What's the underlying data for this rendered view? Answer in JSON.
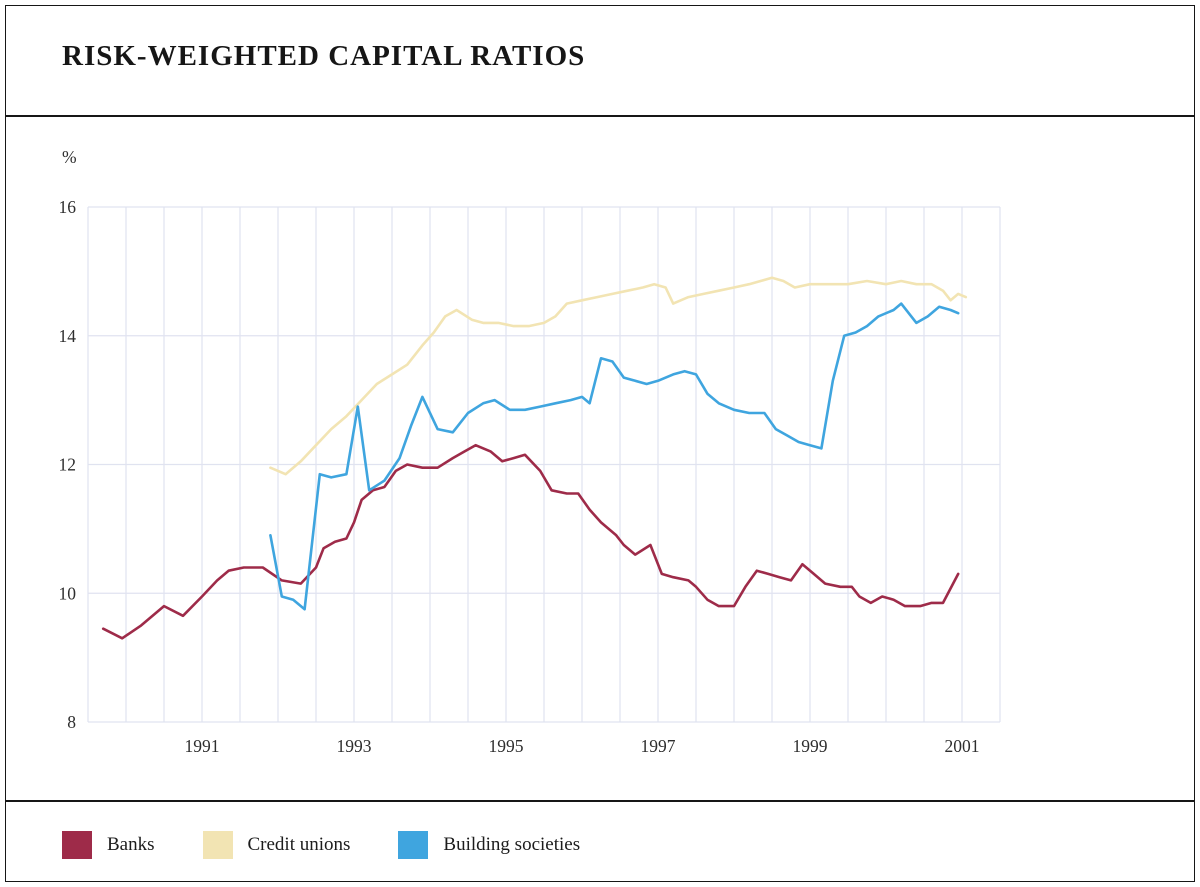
{
  "page": {
    "title": "RISK-WEIGHTED CAPITAL RATIOS"
  },
  "legend": [
    {
      "label": "Banks",
      "color": "#9e2b49"
    },
    {
      "label": "Credit unions",
      "color": "#f2e4b3"
    },
    {
      "label": "Building societies",
      "color": "#3fa5df"
    }
  ],
  "chart_data": {
    "type": "line",
    "title": "RISK-WEIGHTED CAPITAL RATIOS",
    "xlabel": "",
    "ylabel": "%",
    "xlim": [
      1989.5,
      2001.5
    ],
    "ylim": [
      8,
      16
    ],
    "x_ticks": [
      1991,
      1993,
      1995,
      1997,
      1999,
      2001
    ],
    "y_ticks": [
      16,
      14,
      12,
      10,
      8
    ],
    "grid": {
      "on": true,
      "x_step": 0.5,
      "color": "#e0e3f0"
    },
    "legend_position": "bottom",
    "series": [
      {
        "name": "Banks",
        "color": "#9e2b49",
        "points": [
          [
            1989.7,
            9.45
          ],
          [
            1989.95,
            9.3
          ],
          [
            1990.2,
            9.5
          ],
          [
            1990.5,
            9.8
          ],
          [
            1990.75,
            9.65
          ],
          [
            1991.0,
            9.95
          ],
          [
            1991.2,
            10.2
          ],
          [
            1991.35,
            10.35
          ],
          [
            1991.55,
            10.4
          ],
          [
            1991.8,
            10.4
          ],
          [
            1992.05,
            10.2
          ],
          [
            1992.3,
            10.15
          ],
          [
            1992.5,
            10.4
          ],
          [
            1992.6,
            10.7
          ],
          [
            1992.75,
            10.8
          ],
          [
            1992.9,
            10.85
          ],
          [
            1993.0,
            11.1
          ],
          [
            1993.1,
            11.45
          ],
          [
            1993.25,
            11.6
          ],
          [
            1993.4,
            11.65
          ],
          [
            1993.55,
            11.9
          ],
          [
            1993.7,
            12.0
          ],
          [
            1993.9,
            11.95
          ],
          [
            1994.1,
            11.95
          ],
          [
            1994.3,
            12.1
          ],
          [
            1994.45,
            12.2
          ],
          [
            1994.6,
            12.3
          ],
          [
            1994.8,
            12.2
          ],
          [
            1994.95,
            12.05
          ],
          [
            1995.1,
            12.1
          ],
          [
            1995.25,
            12.15
          ],
          [
            1995.45,
            11.9
          ],
          [
            1995.6,
            11.6
          ],
          [
            1995.8,
            11.55
          ],
          [
            1995.95,
            11.55
          ],
          [
            1996.1,
            11.3
          ],
          [
            1996.25,
            11.1
          ],
          [
            1996.45,
            10.9
          ],
          [
            1996.55,
            10.75
          ],
          [
            1996.7,
            10.6
          ],
          [
            1996.9,
            10.75
          ],
          [
            1997.05,
            10.3
          ],
          [
            1997.2,
            10.25
          ],
          [
            1997.4,
            10.2
          ],
          [
            1997.5,
            10.1
          ],
          [
            1997.65,
            9.9
          ],
          [
            1997.8,
            9.8
          ],
          [
            1998.0,
            9.8
          ],
          [
            1998.15,
            10.1
          ],
          [
            1998.3,
            10.35
          ],
          [
            1998.45,
            10.3
          ],
          [
            1998.6,
            10.25
          ],
          [
            1998.75,
            10.2
          ],
          [
            1998.9,
            10.45
          ],
          [
            1999.05,
            10.3
          ],
          [
            1999.2,
            10.15
          ],
          [
            1999.4,
            10.1
          ],
          [
            1999.55,
            10.1
          ],
          [
            1999.65,
            9.95
          ],
          [
            1999.8,
            9.85
          ],
          [
            1999.95,
            9.95
          ],
          [
            2000.1,
            9.9
          ],
          [
            2000.25,
            9.8
          ],
          [
            2000.45,
            9.8
          ],
          [
            2000.6,
            9.85
          ],
          [
            2000.75,
            9.85
          ],
          [
            2000.95,
            10.3
          ]
        ]
      },
      {
        "name": "Credit unions",
        "color": "#f2e4b3",
        "points": [
          [
            1991.9,
            11.95
          ],
          [
            1992.1,
            11.85
          ],
          [
            1992.3,
            12.05
          ],
          [
            1992.5,
            12.3
          ],
          [
            1992.7,
            12.55
          ],
          [
            1992.9,
            12.75
          ],
          [
            1993.1,
            13.0
          ],
          [
            1993.3,
            13.25
          ],
          [
            1993.5,
            13.4
          ],
          [
            1993.7,
            13.55
          ],
          [
            1993.9,
            13.85
          ],
          [
            1994.05,
            14.05
          ],
          [
            1994.2,
            14.3
          ],
          [
            1994.35,
            14.4
          ],
          [
            1994.55,
            14.25
          ],
          [
            1994.7,
            14.2
          ],
          [
            1994.9,
            14.2
          ],
          [
            1995.1,
            14.15
          ],
          [
            1995.3,
            14.15
          ],
          [
            1995.5,
            14.2
          ],
          [
            1995.65,
            14.3
          ],
          [
            1995.8,
            14.5
          ],
          [
            1996.0,
            14.55
          ],
          [
            1996.2,
            14.6
          ],
          [
            1996.4,
            14.65
          ],
          [
            1996.6,
            14.7
          ],
          [
            1996.8,
            14.75
          ],
          [
            1996.95,
            14.8
          ],
          [
            1997.1,
            14.75
          ],
          [
            1997.2,
            14.5
          ],
          [
            1997.4,
            14.6
          ],
          [
            1997.6,
            14.65
          ],
          [
            1997.8,
            14.7
          ],
          [
            1998.0,
            14.75
          ],
          [
            1998.2,
            14.8
          ],
          [
            1998.35,
            14.85
          ],
          [
            1998.5,
            14.9
          ],
          [
            1998.65,
            14.85
          ],
          [
            1998.8,
            14.75
          ],
          [
            1999.0,
            14.8
          ],
          [
            1999.25,
            14.8
          ],
          [
            1999.5,
            14.8
          ],
          [
            1999.75,
            14.85
          ],
          [
            2000.0,
            14.8
          ],
          [
            2000.2,
            14.85
          ],
          [
            2000.4,
            14.8
          ],
          [
            2000.6,
            14.8
          ],
          [
            2000.75,
            14.7
          ],
          [
            2000.85,
            14.55
          ],
          [
            2000.95,
            14.65
          ],
          [
            2001.05,
            14.6
          ]
        ]
      },
      {
        "name": "Building societies",
        "color": "#3fa5df",
        "points": [
          [
            1991.9,
            10.9
          ],
          [
            1992.05,
            9.95
          ],
          [
            1992.2,
            9.9
          ],
          [
            1992.35,
            9.75
          ],
          [
            1992.55,
            11.85
          ],
          [
            1992.7,
            11.8
          ],
          [
            1992.9,
            11.85
          ],
          [
            1993.05,
            12.9
          ],
          [
            1993.2,
            11.6
          ],
          [
            1993.4,
            11.75
          ],
          [
            1993.6,
            12.1
          ],
          [
            1993.75,
            12.6
          ],
          [
            1993.9,
            13.05
          ],
          [
            1994.1,
            12.55
          ],
          [
            1994.3,
            12.5
          ],
          [
            1994.5,
            12.8
          ],
          [
            1994.7,
            12.95
          ],
          [
            1994.85,
            13.0
          ],
          [
            1995.05,
            12.85
          ],
          [
            1995.25,
            12.85
          ],
          [
            1995.45,
            12.9
          ],
          [
            1995.65,
            12.95
          ],
          [
            1995.85,
            13.0
          ],
          [
            1996.0,
            13.05
          ],
          [
            1996.1,
            12.95
          ],
          [
            1996.25,
            13.65
          ],
          [
            1996.4,
            13.6
          ],
          [
            1996.55,
            13.35
          ],
          [
            1996.7,
            13.3
          ],
          [
            1996.85,
            13.25
          ],
          [
            1997.0,
            13.3
          ],
          [
            1997.2,
            13.4
          ],
          [
            1997.35,
            13.45
          ],
          [
            1997.5,
            13.4
          ],
          [
            1997.65,
            13.1
          ],
          [
            1997.8,
            12.95
          ],
          [
            1998.0,
            12.85
          ],
          [
            1998.2,
            12.8
          ],
          [
            1998.4,
            12.8
          ],
          [
            1998.55,
            12.55
          ],
          [
            1998.7,
            12.45
          ],
          [
            1998.85,
            12.35
          ],
          [
            1999.0,
            12.3
          ],
          [
            1999.15,
            12.25
          ],
          [
            1999.3,
            13.3
          ],
          [
            1999.45,
            14.0
          ],
          [
            1999.6,
            14.05
          ],
          [
            1999.75,
            14.15
          ],
          [
            1999.9,
            14.3
          ],
          [
            2000.1,
            14.4
          ],
          [
            2000.2,
            14.5
          ],
          [
            2000.4,
            14.2
          ],
          [
            2000.55,
            14.3
          ],
          [
            2000.7,
            14.45
          ],
          [
            2000.85,
            14.4
          ],
          [
            2000.95,
            14.35
          ]
        ]
      }
    ]
  }
}
